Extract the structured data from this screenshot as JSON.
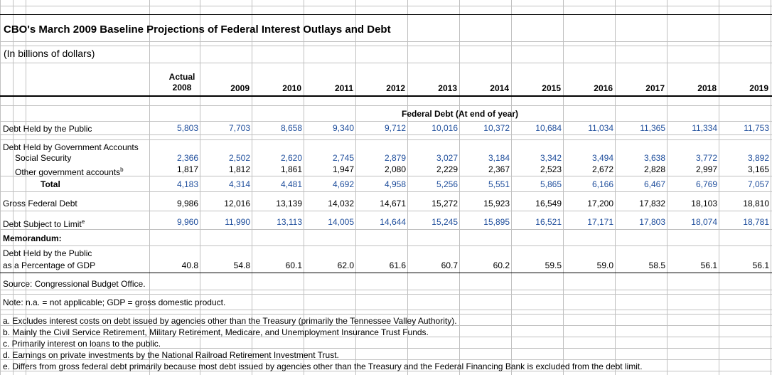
{
  "title": "CBO's March 2009 Baseline Projections of Federal Interest Outlays and Debt",
  "units": "(In billions of dollars)",
  "header": {
    "actual_label": "Actual",
    "years": [
      "2008",
      "2009",
      "2010",
      "2011",
      "2012",
      "2013",
      "2014",
      "2015",
      "2016",
      "2017",
      "2018",
      "2019"
    ]
  },
  "section_heading": "Federal Debt (At end of year)",
  "rows": {
    "debt_public": {
      "label": "Debt Held by the Public",
      "values": [
        "5,803",
        "7,703",
        "8,658",
        "9,340",
        "9,712",
        "10,016",
        "10,372",
        "10,684",
        "11,034",
        "11,365",
        "11,334",
        "11,753"
      ]
    },
    "gov_accounts_label": "Debt Held by Government Accounts",
    "social_security": {
      "label": "Social Security",
      "values": [
        "2,366",
        "2,502",
        "2,620",
        "2,745",
        "2,879",
        "3,027",
        "3,184",
        "3,342",
        "3,494",
        "3,638",
        "3,772",
        "3,892"
      ]
    },
    "other_gov": {
      "label": "Other government accounts",
      "sup": "b",
      "values": [
        "1,817",
        "1,812",
        "1,861",
        "1,947",
        "2,080",
        "2,229",
        "2,367",
        "2,523",
        "2,672",
        "2,828",
        "2,997",
        "3,165"
      ]
    },
    "total": {
      "label": "Total",
      "values": [
        "4,183",
        "4,314",
        "4,481",
        "4,692",
        "4,958",
        "5,256",
        "5,551",
        "5,865",
        "6,166",
        "6,467",
        "6,769",
        "7,057"
      ]
    },
    "gross_debt": {
      "label": "Gross Federal Debt",
      "values": [
        "9,986",
        "12,016",
        "13,139",
        "14,032",
        "14,671",
        "15,272",
        "15,923",
        "16,549",
        "17,200",
        "17,832",
        "18,103",
        "18,810"
      ]
    },
    "limit_debt": {
      "label": "Debt Subject to Limit",
      "sup": "e",
      "values": [
        "9,960",
        "11,990",
        "13,113",
        "14,005",
        "14,644",
        "15,245",
        "15,895",
        "16,521",
        "17,171",
        "17,803",
        "18,074",
        "18,781"
      ]
    },
    "memorandum": "Memorandum:",
    "pct_gdp": {
      "label1": "Debt Held by the Public",
      "label2": "as a Percentage of GDP",
      "values": [
        "40.8",
        "54.8",
        "60.1",
        "62.0",
        "61.6",
        "60.7",
        "60.2",
        "59.5",
        "59.0",
        "58.5",
        "56.1",
        "56.1"
      ]
    }
  },
  "source": "Source:  Congressional Budget Office.",
  "note": "Note:  n.a. = not applicable; GDP = gross domestic product.",
  "footnotes": [
    "a.  Excludes interest costs on debt issued by agencies other than the Treasury (primarily the Tennessee Valley Authority).",
    "b.  Mainly the Civil Service Retirement, Military Retirement, Medicare, and Unemployment Insurance Trust Funds.",
    "c.  Primarily interest on loans to the public.",
    "d.  Earnings on private investments by the National Railroad Retirement Investment Trust.",
    "e.  Differs from gross federal debt primarily because most debt issued by agencies other than the Treasury and the Federal Financing Bank is excluded from the debt limit."
  ],
  "colors": {
    "grid": "#c0c0c0",
    "blue_value": "#1f4e9c",
    "text": "#000000"
  }
}
